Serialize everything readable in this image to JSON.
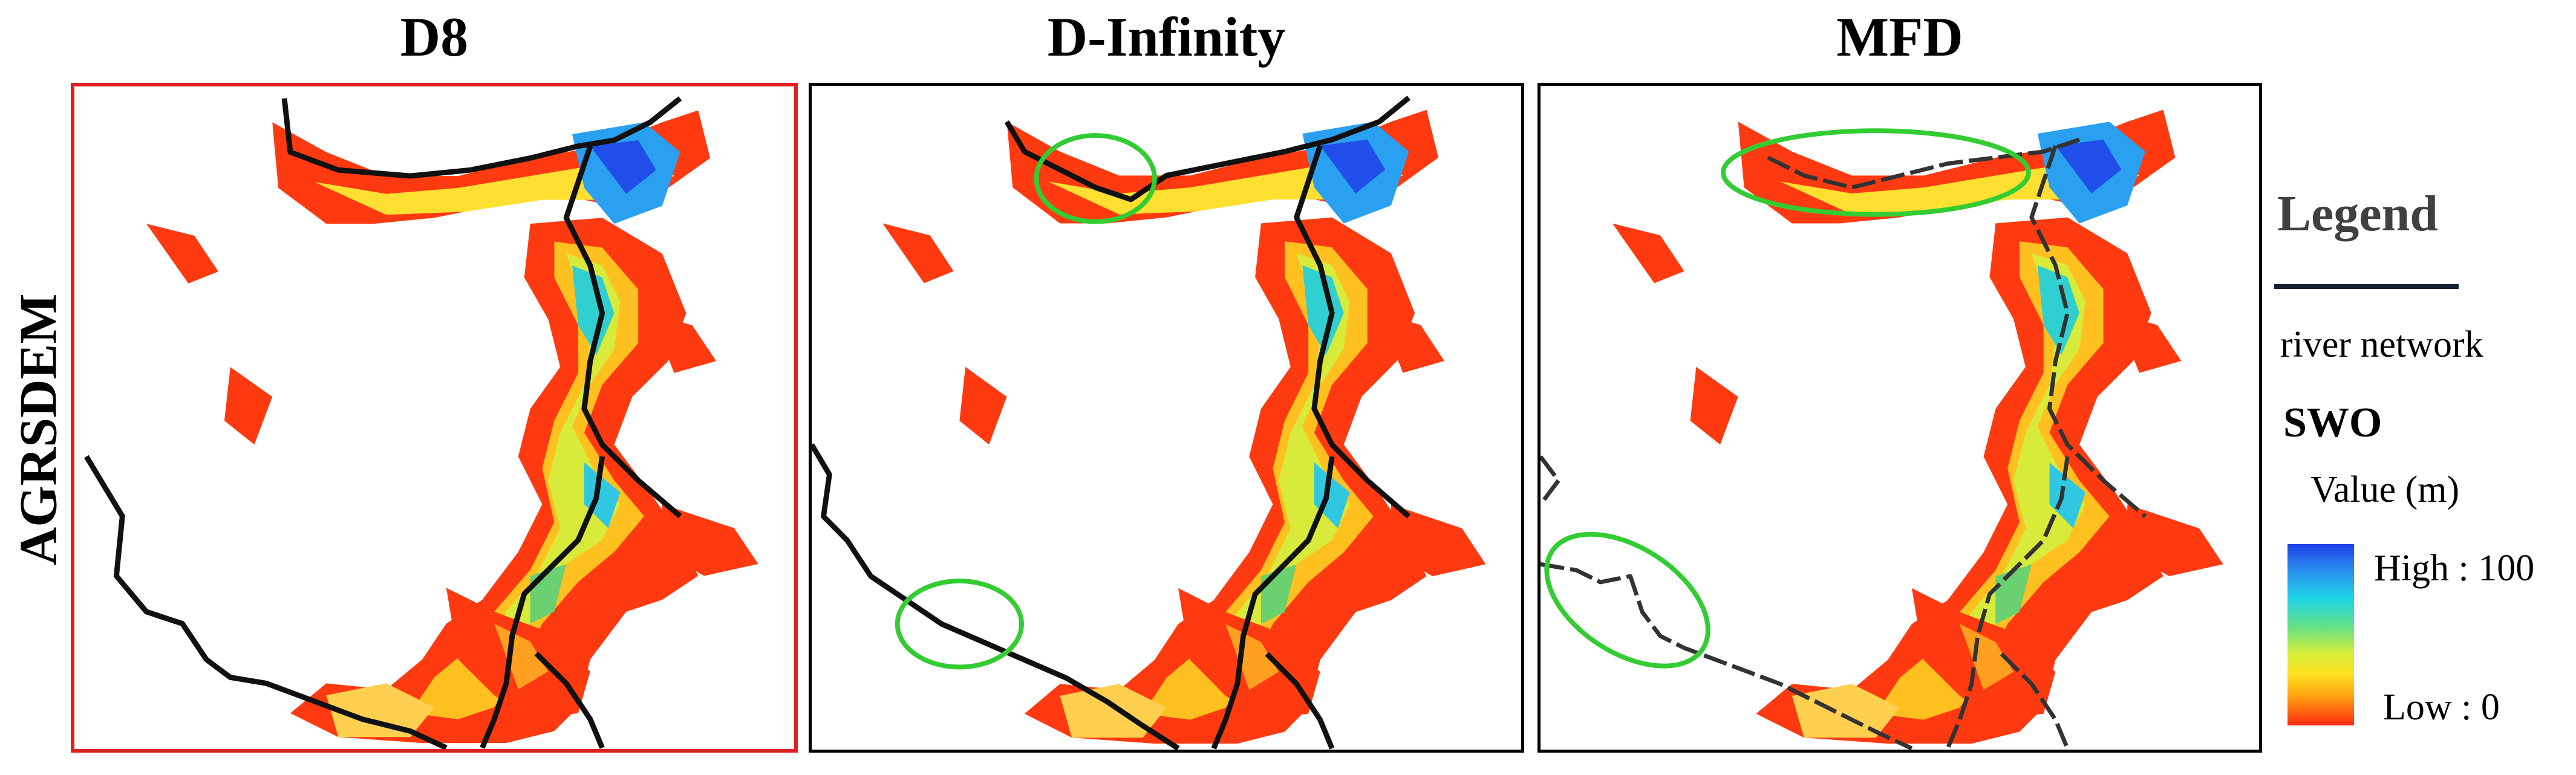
{
  "titles": {
    "d8": "D8",
    "dinf": "D-Infinity",
    "mfd": "MFD"
  },
  "row_label": "AGRSDEM",
  "legend": {
    "title": "Legend",
    "river_label": "river network",
    "swo_label": "SWO",
    "value_label": "Value (m)",
    "high_label": "High : 100",
    "low_label": "Low : 0"
  },
  "colors": {
    "high": "#1f3fe8",
    "mid": "#20d4e8",
    "low": "#ff2a10",
    "yellow": "#ffe020",
    "river": "#111111",
    "highlight_ellipse": "#33cc33",
    "selected_border": "#e02020"
  }
}
